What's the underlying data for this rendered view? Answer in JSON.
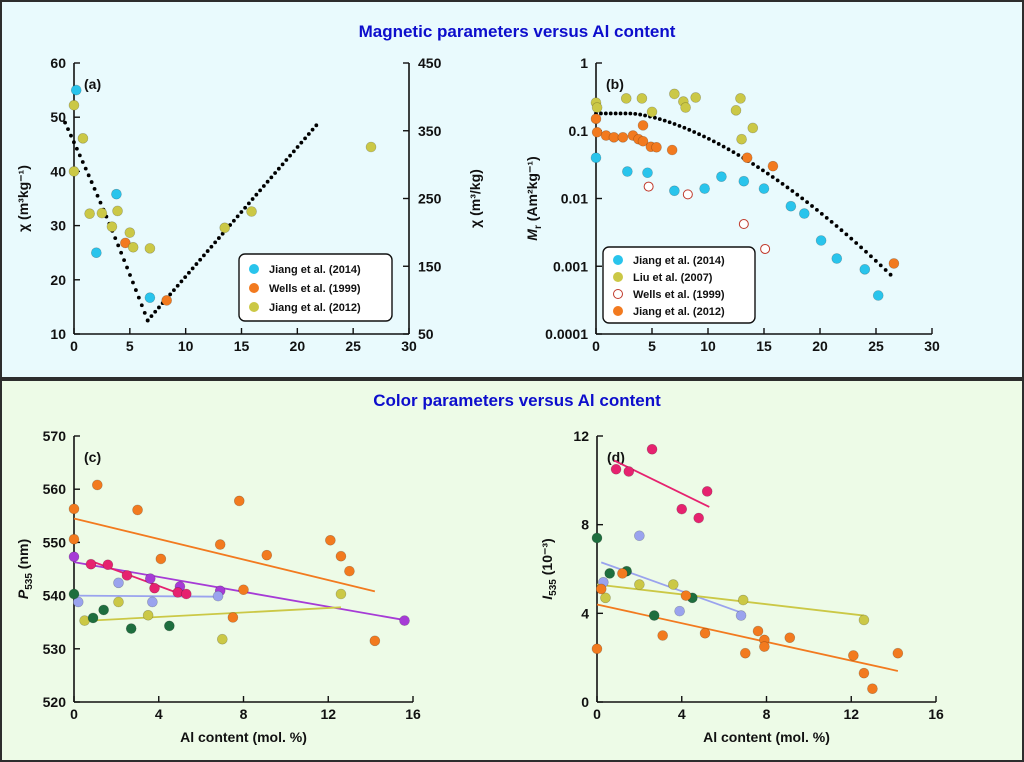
{
  "colors": {
    "top_bg": "#e9fafd",
    "bottom_bg": "#edfbe7",
    "frame": "#2d2d2d",
    "header_text": "#0d0dcc",
    "fit_dots": "#000000",
    "cyan": "#29c4ec",
    "orange": "#f27a1f",
    "olive": "#cbc846",
    "magenta": "#e6226f",
    "purple": "#a63bd6",
    "lavender": "#9aa3ee",
    "dark_green": "#1e6e3e",
    "yellow_green": "#c9d44a"
  },
  "sections": {
    "magnetic_title": "Magnetic parameters versus Al content",
    "color_title": "Color parameters versus Al content"
  },
  "chart_data": [
    {
      "id": "a",
      "type": "scatter",
      "panel_label": "(a)",
      "xlabel": "",
      "xlim": [
        0,
        30
      ],
      "xticks": [
        0,
        5,
        10,
        15,
        20,
        25,
        30
      ],
      "ylabel": "χ (m³kg⁻¹)",
      "ylim": [
        10,
        60
      ],
      "yticks": [
        10,
        20,
        30,
        40,
        50,
        60
      ],
      "y2label": "χ (m³/kg)",
      "y2lim": [
        50,
        450
      ],
      "y2ticks": [
        50,
        150,
        250,
        350,
        450
      ],
      "legend_position": "bottom-right",
      "series": [
        {
          "name": "Jiang et al. (2014)",
          "color": "#29c4ec",
          "filled": true,
          "points": [
            [
              0.2,
              55
            ],
            [
              2.0,
              25
            ],
            [
              3.8,
              35.8
            ],
            [
              6.8,
              16.7
            ]
          ]
        },
        {
          "name": "Wells et al. (1999)",
          "color": "#f27a1f",
          "filled": true,
          "points": [
            [
              4.6,
              26.8
            ],
            [
              8.3,
              16.2
            ]
          ]
        },
        {
          "name": "Jiang et al. (2012)",
          "color": "#cbc846",
          "filled": true,
          "points": [
            [
              0.0,
              52.2
            ],
            [
              0.0,
              40
            ],
            [
              0.8,
              46.1
            ],
            [
              1.4,
              32.2
            ],
            [
              2.5,
              32.3
            ],
            [
              3.4,
              29.8
            ],
            [
              3.9,
              32.7
            ],
            [
              5.0,
              28.7
            ],
            [
              5.3,
              26.0
            ],
            [
              6.8,
              25.8
            ],
            [
              13.5,
              29.6
            ],
            [
              15.9,
              32.6
            ],
            [
              26.6,
              44.5
            ]
          ]
        }
      ],
      "fit": {
        "points": [
          [
            -0.8,
            49
          ],
          [
            6.6,
            12.5
          ],
          [
            21.7,
            48.5
          ]
        ]
      }
    },
    {
      "id": "b",
      "type": "scatter",
      "panel_label": "(b)",
      "yscale": "log",
      "xlabel": "",
      "xlim": [
        0,
        30
      ],
      "xticks": [
        0,
        5,
        10,
        15,
        20,
        25,
        30
      ],
      "ylabel_main": "M",
      "ylabel_sub": "r",
      "ylabel_rest": " (Am²kg⁻¹)",
      "ylim": [
        0.0001,
        1
      ],
      "yticks": [
        0.0001,
        0.001,
        0.01,
        0.1,
        1
      ],
      "ytick_labels": [
        "0.0001",
        "0.001",
        "0.01",
        "0.1",
        "1"
      ],
      "legend_position": "bottom-left",
      "series": [
        {
          "name": "Jiang et al. (2014)",
          "color": "#29c4ec",
          "filled": true,
          "points": [
            [
              0.0,
              0.04
            ],
            [
              2.8,
              0.025
            ],
            [
              4.6,
              0.024
            ],
            [
              7.0,
              0.013
            ],
            [
              9.7,
              0.014
            ],
            [
              11.2,
              0.021
            ],
            [
              13.2,
              0.018
            ],
            [
              15.0,
              0.014
            ],
            [
              17.4,
              0.0077
            ],
            [
              18.6,
              0.006
            ],
            [
              20.1,
              0.0024
            ],
            [
              21.5,
              0.0013
            ],
            [
              24.0,
              0.0009
            ],
            [
              25.2,
              0.00037
            ]
          ]
        },
        {
          "name": "Liu et al. (2007)",
          "color": "#cbc846",
          "filled": true,
          "points": [
            [
              0.0,
              0.26
            ],
            [
              0.1,
              0.22
            ],
            [
              2.7,
              0.3
            ],
            [
              4.1,
              0.3
            ],
            [
              5.0,
              0.19
            ],
            [
              7.0,
              0.35
            ],
            [
              7.8,
              0.27
            ],
            [
              8.0,
              0.22
            ],
            [
              8.9,
              0.31
            ],
            [
              12.5,
              0.2
            ],
            [
              12.9,
              0.3
            ],
            [
              13.0,
              0.075
            ],
            [
              14.0,
              0.11
            ]
          ]
        },
        {
          "name": "Wells et al. (1999)",
          "color": "#c0392b",
          "filled": false,
          "points": [
            [
              4.7,
              0.015
            ],
            [
              8.2,
              0.0115
            ],
            [
              13.2,
              0.0042
            ],
            [
              15.1,
              0.0018
            ]
          ]
        },
        {
          "name": "Jiang et al. (2012)",
          "color": "#f27a1f",
          "filled": true,
          "points": [
            [
              0.0,
              0.15
            ],
            [
              0.1,
              0.095
            ],
            [
              0.9,
              0.085
            ],
            [
              1.6,
              0.08
            ],
            [
              2.4,
              0.08
            ],
            [
              3.3,
              0.085
            ],
            [
              3.8,
              0.075
            ],
            [
              4.2,
              0.12
            ],
            [
              4.2,
              0.07
            ],
            [
              4.9,
              0.058
            ],
            [
              5.4,
              0.057
            ],
            [
              6.8,
              0.052
            ],
            [
              13.5,
              0.04
            ],
            [
              15.8,
              0.03
            ],
            [
              26.6,
              0.0011
            ]
          ]
        }
      ],
      "fit": {
        "x_start": 0,
        "x_end": 26.3
      }
    },
    {
      "id": "c",
      "type": "scatter",
      "panel_label": "(c)",
      "xlabel": "Al content (mol. %)",
      "xlim": [
        0,
        16
      ],
      "xticks": [
        0,
        4,
        8,
        12,
        16
      ],
      "ylabel_main": "P",
      "ylabel_sub": "535",
      "ylabel_rest": " (nm)",
      "ylim": [
        520,
        570
      ],
      "yticks": [
        520,
        530,
        540,
        550,
        560,
        570
      ],
      "series": [
        {
          "color": "#f27a1f",
          "points": [
            [
              0.0,
              556.3
            ],
            [
              0.0,
              550.6
            ],
            [
              1.1,
              560.8
            ],
            [
              3.0,
              556.1
            ],
            [
              4.1,
              546.9
            ],
            [
              6.9,
              549.6
            ],
            [
              7.5,
              535.9
            ],
            [
              7.8,
              557.8
            ],
            [
              8.0,
              541.1
            ],
            [
              9.1,
              547.6
            ],
            [
              12.1,
              550.4
            ],
            [
              12.6,
              547.4
            ],
            [
              13.0,
              544.6
            ],
            [
              14.2,
              531.5
            ]
          ],
          "fit": [
            [
              0,
              554.5
            ],
            [
              14.2,
              540.8
            ]
          ]
        },
        {
          "color": "#a63bd6",
          "points": [
            [
              0.0,
              547.3
            ],
            [
              3.6,
              543.2
            ],
            [
              5.0,
              541.7
            ],
            [
              6.9,
              540.9
            ],
            [
              15.6,
              535.3
            ]
          ],
          "fit": [
            [
              0,
              546.3
            ],
            [
              15.6,
              535.4
            ]
          ]
        },
        {
          "color": "#e6226f",
          "points": [
            [
              0.8,
              545.9
            ],
            [
              1.6,
              545.8
            ],
            [
              2.5,
              543.8
            ],
            [
              3.8,
              541.4
            ],
            [
              4.9,
              540.6
            ],
            [
              5.3,
              540.3
            ]
          ],
          "fit": [
            [
              0.8,
              546.5
            ],
            [
              5.3,
              539.9
            ]
          ]
        },
        {
          "color": "#9aa3ee",
          "points": [
            [
              0.2,
              538.8
            ],
            [
              2.1,
              542.4
            ],
            [
              3.7,
              538.8
            ],
            [
              6.8,
              539.9
            ]
          ],
          "fit": [
            [
              0,
              540
            ],
            [
              6.9,
              539.8
            ]
          ]
        },
        {
          "color": "#cbc846",
          "points": [
            [
              0.5,
              535.3
            ],
            [
              2.1,
              538.8
            ],
            [
              3.5,
              536.3
            ],
            [
              7.0,
              531.8
            ],
            [
              12.6,
              540.3
            ]
          ],
          "fit": [
            [
              0.3,
              535.2
            ],
            [
              12.6,
              537.8
            ]
          ]
        },
        {
          "color": "#1e6e3e",
          "points": [
            [
              0.0,
              540.3
            ],
            [
              0.9,
              535.8
            ],
            [
              1.4,
              537.3
            ],
            [
              2.7,
              533.8
            ],
            [
              4.5,
              534.3
            ]
          ]
        }
      ]
    },
    {
      "id": "d",
      "type": "scatter",
      "panel_label": "(d)",
      "xlabel": "Al content (mol. %)",
      "xlim": [
        0,
        16
      ],
      "xticks": [
        0,
        4,
        8,
        12,
        16
      ],
      "ylabel_main": "I",
      "ylabel_sub": "535",
      "ylabel_rest": " (10⁻³)",
      "ylim": [
        0,
        12
      ],
      "yticks": [
        0,
        4,
        8,
        12
      ],
      "series": [
        {
          "color": "#e6226f",
          "points": [
            [
              0.9,
              10.5
            ],
            [
              1.5,
              10.4
            ],
            [
              2.6,
              11.4
            ],
            [
              4.0,
              8.7
            ],
            [
              4.8,
              8.3
            ],
            [
              5.2,
              9.5
            ]
          ],
          "fit": [
            [
              0.8,
              10.9
            ],
            [
              5.3,
              8.8
            ]
          ]
        },
        {
          "color": "#9aa3ee",
          "points": [
            [
              0.3,
              5.4
            ],
            [
              2.0,
              7.5
            ],
            [
              3.9,
              4.1
            ],
            [
              6.8,
              3.9
            ]
          ],
          "fit": [
            [
              0.2,
              6.3
            ],
            [
              6.9,
              4.0
            ]
          ]
        },
        {
          "color": "#cbc846",
          "points": [
            [
              0.4,
              4.7
            ],
            [
              2.0,
              5.3
            ],
            [
              3.6,
              5.3
            ],
            [
              6.9,
              4.6
            ],
            [
              12.6,
              3.7
            ]
          ],
          "fit": [
            [
              0,
              5.3
            ],
            [
              12.6,
              3.9
            ]
          ]
        },
        {
          "color": "#1e6e3e",
          "points": [
            [
              0.0,
              7.4
            ],
            [
              0.6,
              5.8
            ],
            [
              1.4,
              5.9
            ],
            [
              2.7,
              3.9
            ],
            [
              4.5,
              4.7
            ]
          ]
        },
        {
          "color": "#f27a1f",
          "points": [
            [
              0.0,
              2.4
            ],
            [
              0.2,
              5.1
            ],
            [
              1.2,
              5.8
            ],
            [
              3.1,
              3.0
            ],
            [
              4.2,
              4.8
            ],
            [
              5.1,
              3.1
            ],
            [
              7.0,
              2.2
            ],
            [
              7.6,
              3.2
            ],
            [
              7.9,
              2.8
            ],
            [
              7.9,
              2.5
            ],
            [
              9.1,
              2.9
            ],
            [
              12.1,
              2.1
            ],
            [
              12.6,
              1.3
            ],
            [
              13.0,
              0.6
            ],
            [
              14.2,
              2.2
            ]
          ],
          "fit": [
            [
              0,
              4.4
            ],
            [
              14.2,
              1.4
            ]
          ]
        }
      ]
    }
  ]
}
